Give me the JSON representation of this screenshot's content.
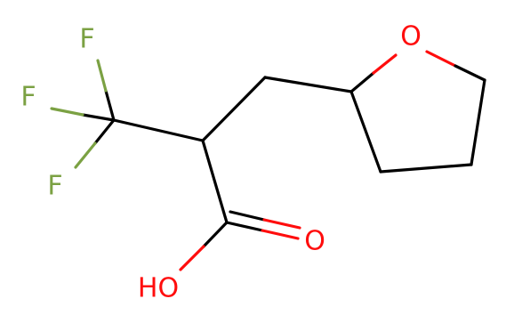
{
  "atoms": [
    {
      "label": "F"
    },
    {
      "label": "F"
    },
    {
      "label": "F"
    },
    {
      "label": "O"
    },
    {
      "label": "O"
    },
    {
      "label": "HO"
    }
  ]
}
